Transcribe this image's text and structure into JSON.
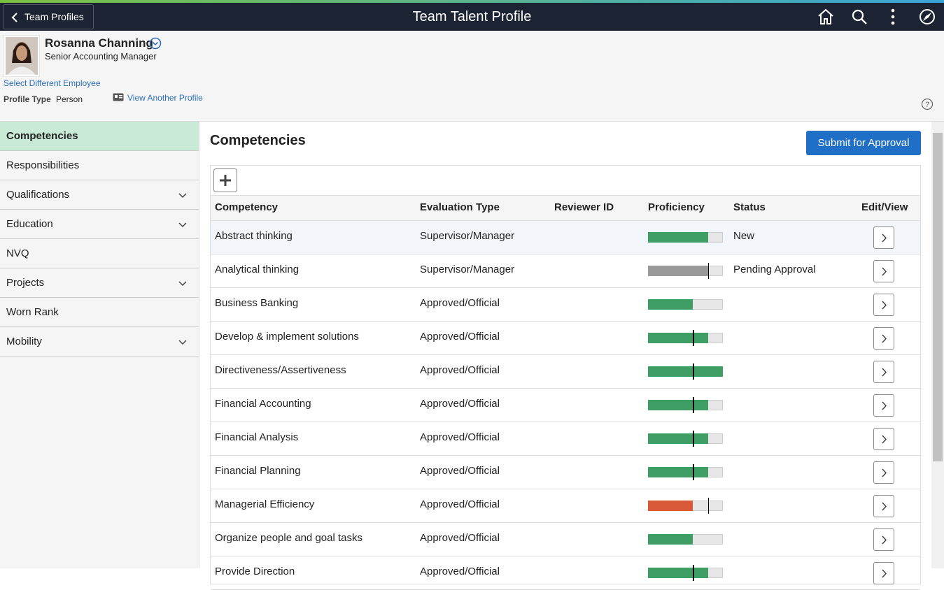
{
  "header": {
    "back": "Team Profiles",
    "title": "Team Talent Profile"
  },
  "employee": {
    "name": "Rosanna Channing",
    "job_title": "Senior Accounting Manager",
    "select_link": "Select Different Employee",
    "profile_type_label": "Profile Type",
    "profile_type": "Person",
    "view_another": "View Another Profile"
  },
  "nav": {
    "items": [
      {
        "label": "Competencies",
        "expandable": false,
        "selected": true
      },
      {
        "label": "Responsibilities",
        "expandable": false
      },
      {
        "label": "Qualifications",
        "expandable": true
      },
      {
        "label": "Education",
        "expandable": true
      },
      {
        "label": "NVQ",
        "expandable": false
      },
      {
        "label": "Projects",
        "expandable": true
      },
      {
        "label": "Worn Rank",
        "expandable": false
      },
      {
        "label": "Mobility",
        "expandable": true
      }
    ]
  },
  "content": {
    "title": "Competencies",
    "submit": "Submit for Approval"
  },
  "table": {
    "columns": [
      "Competency",
      "Evaluation Type",
      "Reviewer ID",
      "Proficiency",
      "Status",
      "Edit/View"
    ],
    "proficiency_scale": [
      0,
      5
    ],
    "rows": [
      {
        "competency": "Abstract thinking",
        "evaluation_type": "Supervisor/Manager",
        "status": "New",
        "proficiency": 4,
        "target": null,
        "color": "#3e9e64"
      },
      {
        "competency": "Analytical thinking",
        "evaluation_type": "Supervisor/Manager",
        "status": "Pending Approval",
        "proficiency": 4,
        "target": 4,
        "color": "#999999"
      },
      {
        "competency": "Business Banking",
        "evaluation_type": "Approved/Official",
        "proficiency": 3,
        "target": null,
        "color": "#3e9e64"
      },
      {
        "competency": "Develop & implement solutions",
        "evaluation_type": "Approved/Official",
        "proficiency": 4,
        "target": 3,
        "color": "#3e9e64"
      },
      {
        "competency": "Directiveness/Assertiveness",
        "evaluation_type": "Approved/Official",
        "proficiency": 5,
        "target": 3,
        "color": "#3e9e64"
      },
      {
        "competency": "Financial Accounting",
        "evaluation_type": "Approved/Official",
        "proficiency": 4,
        "target": 3,
        "color": "#3e9e64"
      },
      {
        "competency": "Financial Analysis",
        "evaluation_type": "Approved/Official",
        "proficiency": 4,
        "target": 3,
        "color": "#3e9e64"
      },
      {
        "competency": "Financial Planning",
        "evaluation_type": "Approved/Official",
        "proficiency": 4,
        "target": 3,
        "color": "#3e9e64"
      },
      {
        "competency": "Managerial Efficiency",
        "evaluation_type": "Approved/Official",
        "proficiency": 3,
        "target": 4,
        "color": "#d95a38"
      },
      {
        "competency": "Organize people and goal tasks",
        "evaluation_type": "Approved/Official",
        "proficiency": 3,
        "target": null,
        "color": "#3e9e64"
      },
      {
        "competency": "Provide Direction",
        "evaluation_type": "Approved/Official",
        "proficiency": 4,
        "target": 3,
        "color": "#3e9e64"
      }
    ]
  }
}
